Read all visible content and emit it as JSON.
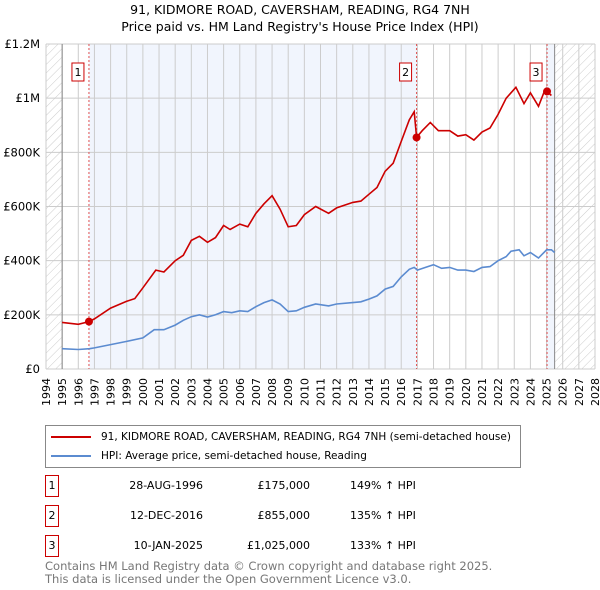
{
  "chart_data": {
    "type": "line",
    "title": "91, KIDMORE ROAD, CAVERSHAM, READING, RG4 7NH",
    "subtitle": "Price paid vs. HM Land Registry's House Price Index (HPI)",
    "xlim": [
      1994,
      2028
    ],
    "ylim": [
      0,
      1200000
    ],
    "y_ticks": [
      {
        "v": 0,
        "label": "£0"
      },
      {
        "v": 200000,
        "label": "£200K"
      },
      {
        "v": 400000,
        "label": "£400K"
      },
      {
        "v": 600000,
        "label": "£600K"
      },
      {
        "v": 800000,
        "label": "£800K"
      },
      {
        "v": 1000000,
        "label": "£1M"
      },
      {
        "v": 1200000,
        "label": "£1.2M"
      }
    ],
    "x_ticks": [
      "1994",
      "1995",
      "1996",
      "1997",
      "1998",
      "1999",
      "2000",
      "2001",
      "2002",
      "2003",
      "2004",
      "2005",
      "2006",
      "2007",
      "2008",
      "2009",
      "2010",
      "2011",
      "2012",
      "2013",
      "2014",
      "2015",
      "2016",
      "2017",
      "2018",
      "2019",
      "2020",
      "2021",
      "2022",
      "2023",
      "2024",
      "2025",
      "2026",
      "2027",
      "2028"
    ],
    "data_range": [
      1995,
      2025.5
    ],
    "series": [
      {
        "name": "91, KIDMORE ROAD, CAVERSHAM, READING, RG4 7NH (semi-detached house)",
        "color": "#cc0000",
        "x": [
          1995,
          1996,
          1996.66,
          1997,
          1998,
          1999,
          1999.5,
          2000,
          2000.8,
          2001.3,
          2002,
          2002.5,
          2003,
          2003.5,
          2004,
          2004.5,
          2005,
          2005.4,
          2006,
          2006.5,
          2007,
          2007.5,
          2008,
          2008.5,
          2009,
          2009.5,
          2010,
          2010.7,
          2011.5,
          2012,
          2013,
          2013.5,
          2014,
          2014.5,
          2015,
          2015.5,
          2016,
          2016.5,
          2016.8,
          2016.95,
          2017.3,
          2017.8,
          2018.3,
          2019,
          2019.5,
          2020,
          2020.5,
          2021,
          2021.5,
          2022,
          2022.5,
          2022.8,
          2023.1,
          2023.6,
          2024,
          2024.5,
          2024.9,
          2025.03,
          2025.3
        ],
        "y": [
          172000,
          165000,
          175000,
          185000,
          225000,
          250000,
          260000,
          300000,
          365000,
          358000,
          400000,
          420000,
          475000,
          490000,
          468000,
          485000,
          530000,
          515000,
          535000,
          525000,
          575000,
          610000,
          640000,
          590000,
          525000,
          530000,
          570000,
          600000,
          575000,
          595000,
          615000,
          620000,
          645000,
          670000,
          730000,
          760000,
          840000,
          920000,
          950000,
          855000,
          880000,
          910000,
          880000,
          880000,
          860000,
          865000,
          845000,
          875000,
          890000,
          940000,
          1000000,
          1020000,
          1040000,
          980000,
          1020000,
          970000,
          1030000,
          1025000,
          1010000
        ]
      },
      {
        "name": "HPI: Average price, semi-detached house, Reading",
        "color": "#5b8bd0",
        "x": [
          1995,
          1996,
          1996.7,
          1997,
          1998,
          1999,
          2000,
          2000.7,
          2001.3,
          2002,
          2002.5,
          2003,
          2003.5,
          2004,
          2004.5,
          2005,
          2005.5,
          2006,
          2006.5,
          2007,
          2007.5,
          2008,
          2008.5,
          2009,
          2009.5,
          2010,
          2010.7,
          2011.5,
          2012,
          2013,
          2013.5,
          2014,
          2014.5,
          2015,
          2015.5,
          2016,
          2016.5,
          2016.8,
          2017,
          2017.5,
          2018,
          2018.5,
          2019,
          2019.5,
          2020,
          2020.5,
          2021,
          2021.5,
          2022,
          2022.5,
          2022.8,
          2023.3,
          2023.6,
          2024,
          2024.5,
          2025,
          2025.3,
          2025.5
        ],
        "y": [
          75000,
          72000,
          75000,
          78000,
          90000,
          102000,
          115000,
          145000,
          145000,
          162000,
          180000,
          193000,
          200000,
          192000,
          200000,
          212000,
          208000,
          215000,
          212000,
          230000,
          245000,
          255000,
          240000,
          212000,
          215000,
          228000,
          240000,
          233000,
          240000,
          245000,
          248000,
          258000,
          270000,
          295000,
          305000,
          340000,
          368000,
          375000,
          365000,
          375000,
          385000,
          372000,
          375000,
          365000,
          365000,
          360000,
          375000,
          378000,
          400000,
          415000,
          435000,
          440000,
          418000,
          430000,
          410000,
          440000,
          440000,
          430000
        ]
      }
    ],
    "transactions": [
      {
        "label": "1",
        "x": 1996.66,
        "y": 175000,
        "date": "28-AUG-1996",
        "price": "£175,000",
        "hpi": "149% ↑ HPI"
      },
      {
        "label": "2",
        "x": 2016.95,
        "y": 855000,
        "date": "12-DEC-2016",
        "price": "£855,000",
        "hpi": "135% ↑ HPI"
      },
      {
        "label": "3",
        "x": 2025.03,
        "y": 1025000,
        "date": "10-JAN-2025",
        "price": "£1,025,000",
        "hpi": "133% ↑ HPI"
      }
    ],
    "legend_placement": "below"
  },
  "footer": {
    "line1": "Contains HM Land Registry data © Crown copyright and database right 2025.",
    "line2": "This data is licensed under the Open Government Licence v3.0."
  }
}
